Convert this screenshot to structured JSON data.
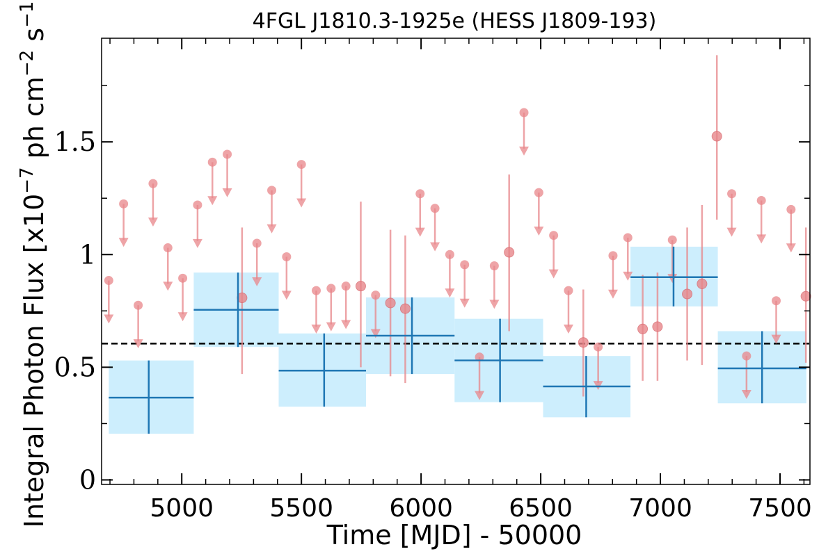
{
  "chart_data": {
    "type": "scatter",
    "title": "4FGL J1810.3-1925e (HESS J1809-193)",
    "xlabel": "Time [MJD] - 50000",
    "ylabel": "Integral Photon Flux [x10^-7 ph cm^-2 s^-1]",
    "xlim": [
      4665,
      7625
    ],
    "ylim": [
      -0.02,
      1.96
    ],
    "xticks": [
      {
        "value": 5000,
        "label": "5000"
      },
      {
        "value": 5500,
        "label": "5500"
      },
      {
        "value": 6000,
        "label": "6000"
      },
      {
        "value": 6500,
        "label": "6500"
      },
      {
        "value": 7000,
        "label": "7000"
      },
      {
        "value": 7500,
        "label": "7500"
      }
    ],
    "yticks": [
      {
        "value": 0,
        "label": "0"
      },
      {
        "value": 0.5,
        "label": "0.5"
      },
      {
        "value": 1,
        "label": "1"
      },
      {
        "value": 1.5,
        "label": "1.5"
      }
    ],
    "mean_flux": 0.605,
    "colors": {
      "bin_band": "#cdeefd",
      "bin_line": "#1f77b4",
      "short_points": "#e8868a",
      "mean_line": "#000000"
    },
    "long_bins": [
      {
        "x_start": 4695,
        "x_end": 5050,
        "x": 4862,
        "y": 0.365,
        "y_low": 0.205,
        "y_high": 0.53
      },
      {
        "x_start": 5050,
        "x_end": 5405,
        "x": 5235,
        "y": 0.755,
        "y_low": 0.59,
        "y_high": 0.92
      },
      {
        "x_start": 5405,
        "x_end": 5770,
        "x": 5595,
        "y": 0.485,
        "y_low": 0.325,
        "y_high": 0.65
      },
      {
        "x_start": 5770,
        "x_end": 6140,
        "x": 5962,
        "y": 0.64,
        "y_low": 0.47,
        "y_high": 0.81
      },
      {
        "x_start": 6140,
        "x_end": 6510,
        "x": 6330,
        "y": 0.53,
        "y_low": 0.345,
        "y_high": 0.715
      },
      {
        "x_start": 6510,
        "x_end": 6875,
        "x": 6690,
        "y": 0.415,
        "y_low": 0.278,
        "y_high": 0.55
      },
      {
        "x_start": 6875,
        "x_end": 7240,
        "x": 7055,
        "y": 0.9,
        "y_low": 0.77,
        "y_high": 1.035
      },
      {
        "x_start": 7240,
        "x_end": 7610,
        "x": 7425,
        "y": 0.495,
        "y_low": 0.34,
        "y_high": 0.66
      }
    ],
    "short_upper_limits": [
      {
        "x": 4695,
        "y": 0.885
      },
      {
        "x": 4757,
        "y": 1.225
      },
      {
        "x": 4818,
        "y": 0.775
      },
      {
        "x": 4880,
        "y": 1.315
      },
      {
        "x": 4942,
        "y": 1.03
      },
      {
        "x": 5004,
        "y": 0.895
      },
      {
        "x": 5066,
        "y": 1.22
      },
      {
        "x": 5128,
        "y": 1.41
      },
      {
        "x": 5190,
        "y": 1.445
      },
      {
        "x": 5314,
        "y": 1.05
      },
      {
        "x": 5376,
        "y": 1.285
      },
      {
        "x": 5438,
        "y": 0.99
      },
      {
        "x": 5500,
        "y": 1.4
      },
      {
        "x": 5562,
        "y": 0.84
      },
      {
        "x": 5624,
        "y": 0.85
      },
      {
        "x": 5686,
        "y": 0.86
      },
      {
        "x": 5810,
        "y": 0.82
      },
      {
        "x": 5996,
        "y": 1.27
      },
      {
        "x": 6058,
        "y": 1.205
      },
      {
        "x": 6120,
        "y": 1.0
      },
      {
        "x": 6182,
        "y": 0.955
      },
      {
        "x": 6244,
        "y": 0.545
      },
      {
        "x": 6306,
        "y": 0.95
      },
      {
        "x": 6430,
        "y": 1.63
      },
      {
        "x": 6492,
        "y": 1.275
      },
      {
        "x": 6554,
        "y": 1.085
      },
      {
        "x": 6616,
        "y": 0.84
      },
      {
        "x": 6740,
        "y": 0.59
      },
      {
        "x": 6802,
        "y": 0.995
      },
      {
        "x": 6864,
        "y": 1.075
      },
      {
        "x": 7050,
        "y": 1.065
      },
      {
        "x": 7298,
        "y": 1.27
      },
      {
        "x": 7360,
        "y": 0.55
      },
      {
        "x": 7422,
        "y": 1.24
      },
      {
        "x": 7484,
        "y": 0.795
      },
      {
        "x": 7546,
        "y": 1.2
      }
    ],
    "short_detections": [
      {
        "x": 5252,
        "y": 0.808,
        "y_low": 0.47,
        "y_high": 1.12
      },
      {
        "x": 5748,
        "y": 0.86,
        "y_low": 0.5,
        "y_high": 1.235
      },
      {
        "x": 5872,
        "y": 0.785,
        "y_low": 0.46,
        "y_high": 1.11
      },
      {
        "x": 5934,
        "y": 0.76,
        "y_low": 0.43,
        "y_high": 1.085
      },
      {
        "x": 6368,
        "y": 1.01,
        "y_low": 0.66,
        "y_high": 1.355
      },
      {
        "x": 6678,
        "y": 0.61,
        "y_low": 0.37,
        "y_high": 0.845
      },
      {
        "x": 6926,
        "y": 0.67,
        "y_low": 0.44,
        "y_high": 0.91
      },
      {
        "x": 6988,
        "y": 0.68,
        "y_low": 0.44,
        "y_high": 0.92
      },
      {
        "x": 7112,
        "y": 0.825,
        "y_low": 0.53,
        "y_high": 1.12
      },
      {
        "x": 7174,
        "y": 0.87,
        "y_low": 0.51,
        "y_high": 1.22
      },
      {
        "x": 7236,
        "y": 1.525,
        "y_low": 1.155,
        "y_high": 1.885
      },
      {
        "x": 7608,
        "y": 0.815,
        "y_low": 0.52,
        "y_high": 1.12
      }
    ]
  }
}
